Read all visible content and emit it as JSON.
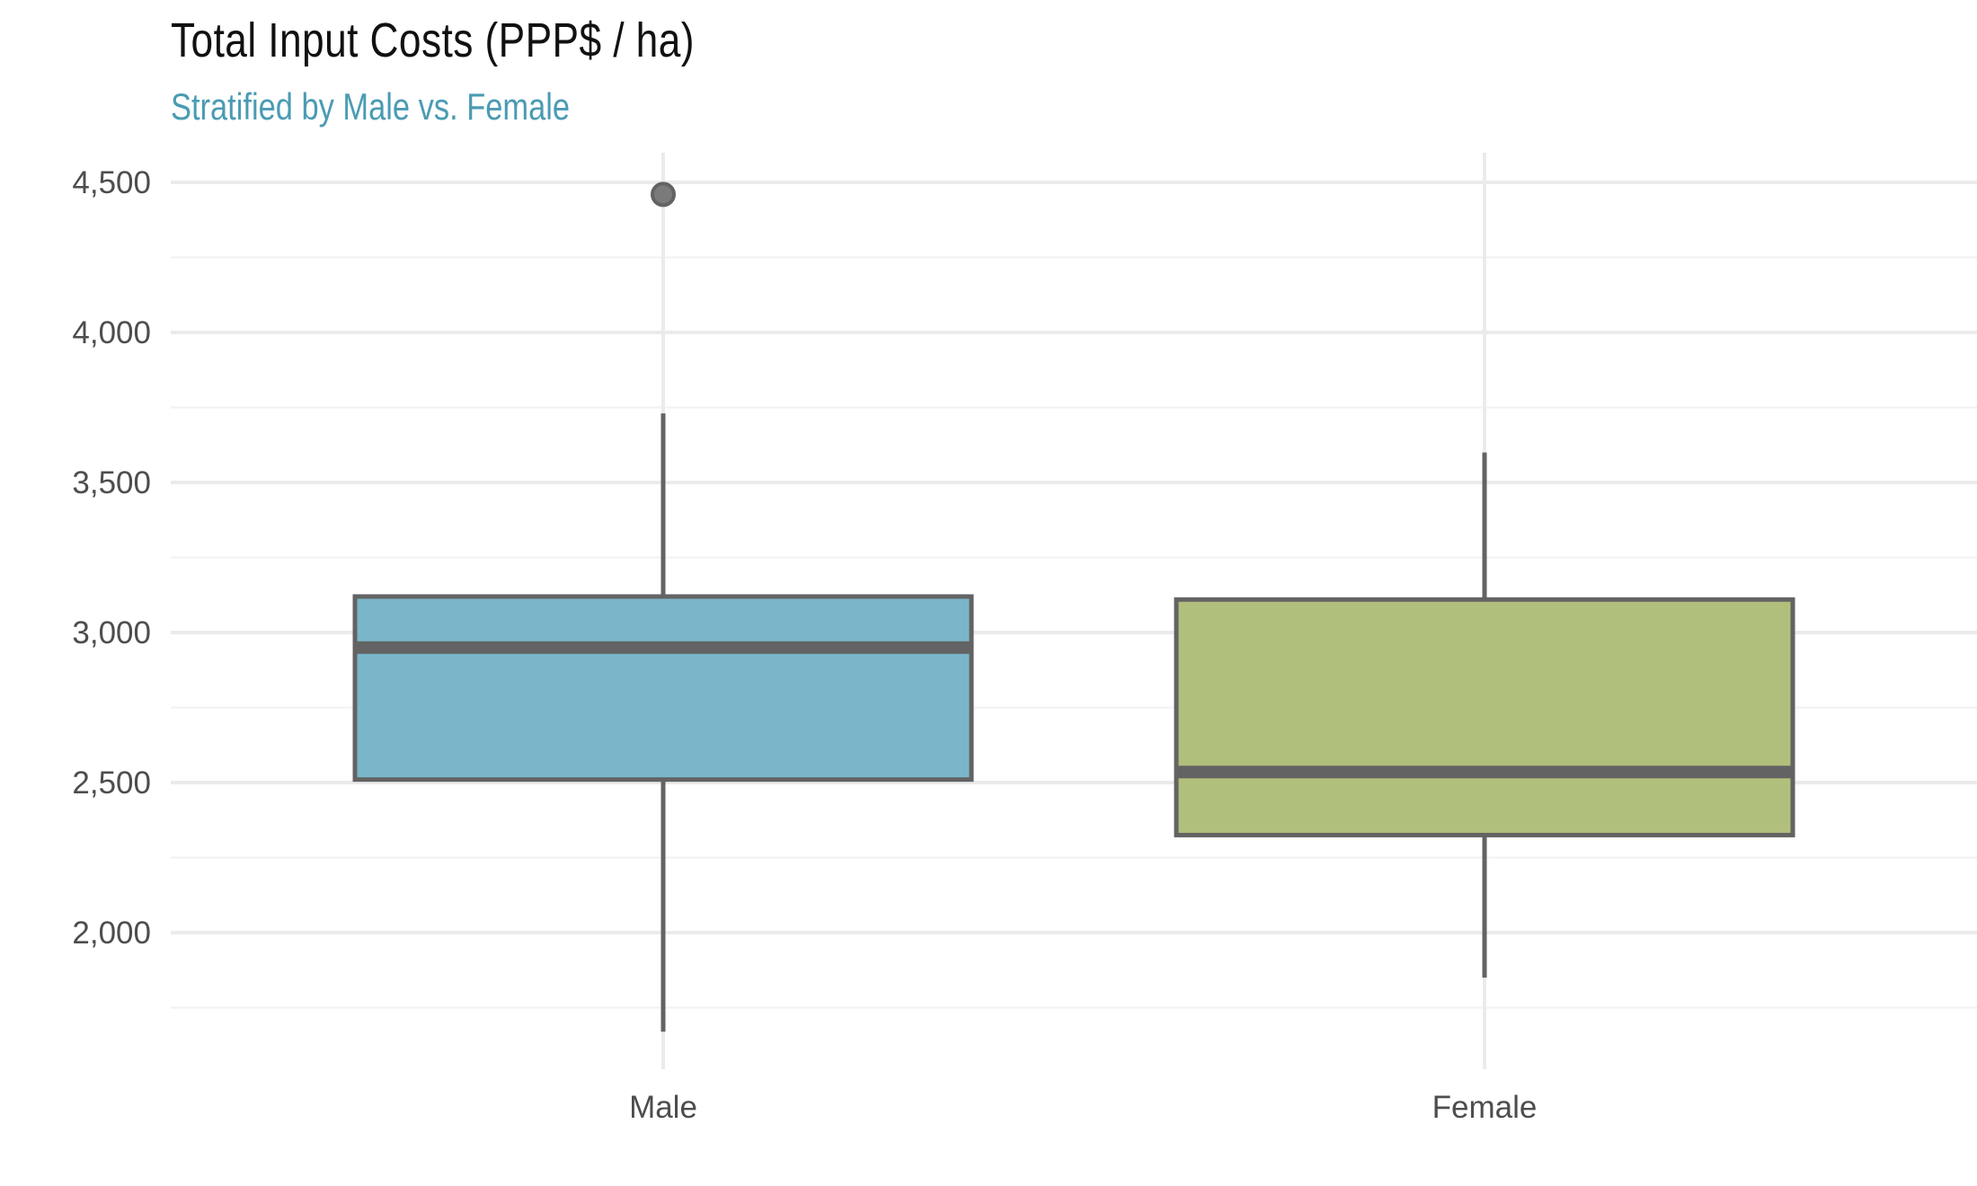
{
  "chart_data": {
    "type": "boxplot",
    "title": "Total Input Costs (PPP$ / ha)",
    "subtitle": "Stratified by Male vs. Female",
    "xlabel": "",
    "ylabel": "",
    "categories": [
      "Male",
      "Female"
    ],
    "y_ticks": [
      2000,
      2500,
      3000,
      3500,
      4000,
      4500
    ],
    "y_tick_labels": [
      "2,000",
      "2,500",
      "3,000",
      "3,500",
      "4,000",
      "4,500"
    ],
    "ylim": [
      1500,
      4600
    ],
    "grid": true,
    "boxes": [
      {
        "name": "Male",
        "min": 1670,
        "q1": 2510,
        "median": 2950,
        "q3": 3120,
        "max": 3730,
        "outliers": [
          4460
        ],
        "color": "#7ab6c9"
      },
      {
        "name": "Female",
        "min": 1850,
        "q1": 2325,
        "median": 2535,
        "q3": 3110,
        "max": 3600,
        "outliers": [],
        "color": "#b1bf7c"
      }
    ],
    "colors": {
      "outline": "#636363",
      "grid": "#ebebeb",
      "subtitle": "#4a9bb3"
    }
  }
}
